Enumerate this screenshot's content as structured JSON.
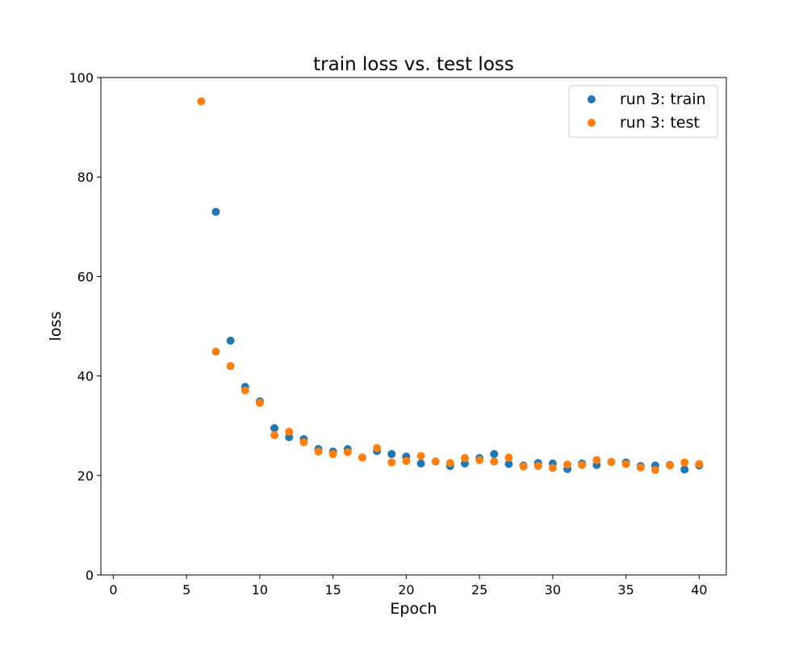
{
  "chart_data": {
    "type": "scatter",
    "title": "train loss vs. test loss",
    "xlabel": "Epoch",
    "ylabel": "loss",
    "xlim": [
      -0.85,
      41.85
    ],
    "ylim": [
      0,
      100
    ],
    "x_ticks": [
      0,
      5,
      10,
      15,
      20,
      25,
      30,
      35,
      40
    ],
    "y_ticks": [
      0,
      20,
      40,
      60,
      80,
      100
    ],
    "grid": false,
    "legend_position": "top-right",
    "series": [
      {
        "name": "run 3: train",
        "color": "#1f77b4",
        "x": [
          7,
          8,
          9,
          10,
          11,
          12,
          13,
          14,
          15,
          16,
          17,
          18,
          19,
          20,
          21,
          22,
          23,
          24,
          25,
          26,
          27,
          28,
          29,
          30,
          31,
          32,
          33,
          34,
          35,
          36,
          37,
          38,
          39,
          40
        ],
        "y": [
          73.0,
          47.1,
          37.8,
          34.9,
          29.5,
          27.7,
          27.3,
          25.3,
          24.8,
          25.3,
          23.6,
          24.9,
          24.3,
          23.8,
          22.4,
          22.8,
          21.9,
          22.4,
          23.5,
          24.3,
          22.3,
          22.0,
          22.5,
          22.4,
          21.3,
          22.4,
          22.1,
          22.7,
          22.6,
          21.9,
          22.0,
          22.1,
          21.2,
          22.0
        ]
      },
      {
        "name": "run 3: test",
        "color": "#ff7f0e",
        "x": [
          6,
          7,
          8,
          9,
          10,
          11,
          12,
          13,
          14,
          15,
          16,
          17,
          18,
          19,
          20,
          21,
          22,
          23,
          24,
          25,
          26,
          27,
          28,
          29,
          30,
          31,
          32,
          33,
          34,
          35,
          36,
          37,
          38,
          39,
          40
        ],
        "y": [
          95.2,
          44.9,
          42.0,
          37.1,
          34.6,
          28.1,
          28.8,
          26.7,
          24.8,
          24.3,
          24.7,
          23.6,
          25.5,
          22.6,
          22.9,
          23.9,
          22.8,
          22.5,
          23.5,
          23.1,
          22.8,
          23.6,
          21.8,
          21.9,
          21.5,
          22.2,
          22.1,
          23.1,
          22.7,
          22.3,
          21.6,
          21.1,
          22.0,
          22.6,
          22.3
        ]
      }
    ]
  }
}
